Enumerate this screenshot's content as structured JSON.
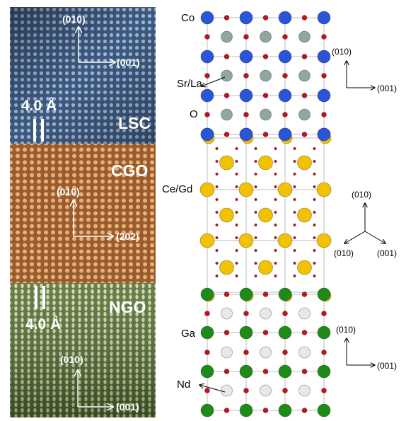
{
  "left_panel": {
    "layers": {
      "lsc": "LSC",
      "cgo": "CGO",
      "ngo": "NGO"
    },
    "spacing_top": "4.0 Å",
    "spacing_bottom": "4.0 Å",
    "lsc_axes": {
      "up": "(010)",
      "right": "(001)"
    },
    "cgo_axes": {
      "up": "(010)",
      "right": "(202)"
    },
    "ngo_axes": {
      "up": "(010)",
      "right": "(001)"
    }
  },
  "right_panel": {
    "atom_labels": {
      "co": "Co",
      "sr_la": "Sr/La",
      "o": "O",
      "ce_gd": "Ce/Gd",
      "ga": "Ga",
      "nd": "Nd"
    },
    "axes_top": {
      "up": "(010)",
      "right": "(001)"
    },
    "axes_middle": {
      "up": "(010)",
      "left": "(010)",
      "right": "(001)"
    },
    "axes_bottom": {
      "up": "(010)",
      "right": "(001)"
    }
  },
  "colors": {
    "cobalt": "#2a55d8",
    "sr_la": "#8fa6a3",
    "oxygen": "#c1121f",
    "ce_gd": "#f2c200",
    "gallium": "#1e8a18",
    "neodymium": "#e8e8e8",
    "lsc_panel": "#4b6a93",
    "cgo_panel": "#b8763f",
    "ngo_panel": "#6f8a45"
  }
}
